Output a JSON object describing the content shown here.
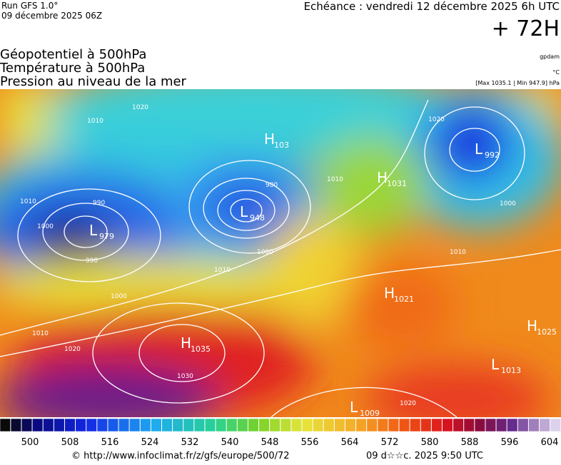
{
  "header": {
    "run": "Run GFS 1.0°",
    "date": "09 décembre 2025 06Z",
    "echeance": "Echéance : vendredi 12 décembre 2025 6h UTC",
    "lead": "+ 72H"
  },
  "fields": [
    "Géopotentiel à 500hPa",
    "Température à 500hPa",
    "Pression au niveau de la mer"
  ],
  "units": {
    "geopotential": "gpdam",
    "temperature": "°C",
    "pressure": "[Max 1035.1 | Min 947.9] hPa"
  },
  "centers": [
    {
      "letter": "H",
      "value": "103"
    },
    {
      "letter": "L",
      "value": "948"
    },
    {
      "letter": "H",
      "value": "1031"
    },
    {
      "letter": "L",
      "value": "992"
    },
    {
      "letter": "L",
      "value": "979"
    },
    {
      "letter": "H",
      "value": "1021"
    },
    {
      "letter": "H",
      "value": "1025"
    },
    {
      "letter": "L",
      "value": "1013"
    },
    {
      "letter": "H",
      "value": "1035"
    },
    {
      "letter": "L",
      "value": "1009"
    }
  ],
  "isobar_labels": [
    "1020",
    "1010",
    "1010",
    "1000",
    "990",
    "980",
    "990",
    "1000",
    "1010",
    "1000",
    "1010",
    "1020",
    "1030",
    "1010",
    "1020",
    "1000",
    "1010",
    "1020"
  ],
  "colorbar": {
    "ticks": [
      500,
      508,
      516,
      524,
      532,
      540,
      548,
      556,
      564,
      572,
      580,
      588,
      596,
      604
    ]
  },
  "footer": {
    "source": "© http://www.infoclimat.fr/z/gfs/europe/500/72",
    "stamp": "09 d☆☆c. 2025  9:50 UTC"
  }
}
